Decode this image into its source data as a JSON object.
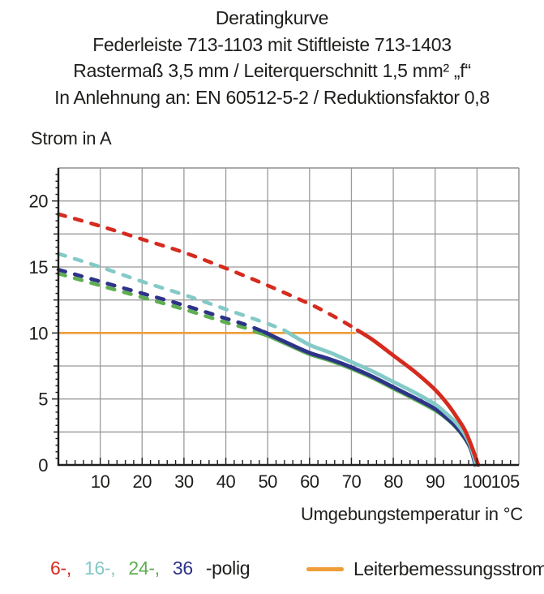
{
  "title_lines": [
    "Deratingkurve",
    "Federleiste 713-1103 mit Stiftleiste 713-1403",
    "Rastermaß 3,5 mm / Leiterquerschnitt 1,5 mm² „f“",
    "In Anlehnung an: EN 60512-5-2 / Reduktionsfaktor 0,8"
  ],
  "legend": {
    "entries": [
      {
        "text": "6-,",
        "color": "#d52b1e"
      },
      {
        "text": "16-,",
        "color": "#84cac7"
      },
      {
        "text": "24-,",
        "color": "#5fae52"
      },
      {
        "text": "36",
        "color": "#2d3388"
      }
    ],
    "suffix": "-polig",
    "rated": {
      "label": "Leiterbemessungsstrom",
      "color": "#ef9d38"
    }
  },
  "colors": {
    "grid": "#9b9b9b",
    "frame": "#8f8f8f",
    "axis": "#1d1d1b",
    "text": "#1d1d1b"
  },
  "chart_data": {
    "type": "line",
    "title": "Deratingkurve",
    "xlabel": "Umgebungstemperatur in °C",
    "ylabel": "Strom in A",
    "xlim": [
      0,
      110
    ],
    "ylim": [
      0,
      22.5
    ],
    "x_tick_labels": [
      10,
      20,
      30,
      40,
      50,
      60,
      70,
      80,
      90,
      100,
      105
    ],
    "x_grid_step": 10,
    "x_minor_tick_step": 2,
    "y_tick_labels": [
      0,
      5,
      10,
      15,
      20
    ],
    "y_grid_step": 2.5,
    "y_minor_tick_step": 0.5,
    "grid": true,
    "legend_position": "bottom",
    "rated_line": {
      "label": "Leiterbemessungsstrom",
      "y": 10,
      "x_start": 0,
      "x_end": 71,
      "color": "#ef9d38"
    },
    "series": [
      {
        "name": "24-polig",
        "color": "#5fae52",
        "style": "dashed-above-rated",
        "dashed": [
          [
            0,
            14.5
          ],
          [
            10,
            13.6
          ],
          [
            20,
            12.7
          ],
          [
            30,
            11.8
          ],
          [
            40,
            10.8
          ],
          [
            45,
            10.35
          ],
          [
            47.5,
            10.05
          ]
        ],
        "solid": [
          [
            47.5,
            10.05
          ],
          [
            50,
            9.8
          ],
          [
            55,
            9.1
          ],
          [
            60,
            8.4
          ],
          [
            65,
            7.9
          ],
          [
            70,
            7.3
          ],
          [
            75,
            6.6
          ],
          [
            80,
            5.8
          ],
          [
            85,
            5.0
          ],
          [
            90,
            4.15
          ],
          [
            93,
            3.45
          ],
          [
            95,
            2.85
          ],
          [
            97,
            2.05
          ],
          [
            98.5,
            1.2
          ],
          [
            99.6,
            0
          ]
        ]
      },
      {
        "name": "36-polig",
        "color": "#2d3388",
        "style": "dashed-above-rated",
        "dashed": [
          [
            0,
            14.8
          ],
          [
            10,
            13.9
          ],
          [
            20,
            13.0
          ],
          [
            30,
            12.1
          ],
          [
            40,
            11.1
          ],
          [
            45,
            10.6
          ],
          [
            49,
            10.1
          ]
        ],
        "solid": [
          [
            49,
            10.1
          ],
          [
            50,
            9.95
          ],
          [
            55,
            9.2
          ],
          [
            60,
            8.5
          ],
          [
            65,
            8.0
          ],
          [
            70,
            7.4
          ],
          [
            75,
            6.7
          ],
          [
            80,
            5.9
          ],
          [
            85,
            5.1
          ],
          [
            90,
            4.25
          ],
          [
            93,
            3.5
          ],
          [
            95,
            2.9
          ],
          [
            97,
            2.1
          ],
          [
            98.5,
            1.25
          ],
          [
            99.6,
            0
          ]
        ]
      },
      {
        "name": "16-polig",
        "color": "#84cac7",
        "style": "dashed-above-rated",
        "dashed": [
          [
            0,
            16.0
          ],
          [
            10,
            15.0
          ],
          [
            20,
            13.9
          ],
          [
            30,
            12.9
          ],
          [
            40,
            11.8
          ],
          [
            50,
            10.7
          ],
          [
            54,
            10.2
          ]
        ],
        "solid": [
          [
            54,
            10.2
          ],
          [
            55,
            10.0
          ],
          [
            60,
            9.1
          ],
          [
            65,
            8.5
          ],
          [
            70,
            7.8
          ],
          [
            75,
            7.1
          ],
          [
            80,
            6.3
          ],
          [
            85,
            5.5
          ],
          [
            90,
            4.6
          ],
          [
            93,
            3.8
          ],
          [
            95,
            3.2
          ],
          [
            97,
            2.35
          ],
          [
            98.5,
            1.4
          ],
          [
            99.8,
            0
          ]
        ]
      },
      {
        "name": "6-polig",
        "color": "#d52b1e",
        "style": "dashed-above-rated",
        "dashed": [
          [
            0,
            19.0
          ],
          [
            10,
            18.1
          ],
          [
            20,
            17.1
          ],
          [
            30,
            16.1
          ],
          [
            40,
            14.9
          ],
          [
            50,
            13.6
          ],
          [
            60,
            12.2
          ],
          [
            65,
            11.4
          ],
          [
            70,
            10.5
          ],
          [
            71.5,
            10.2
          ]
        ],
        "solid": [
          [
            71.5,
            10.2
          ],
          [
            75,
            9.5
          ],
          [
            80,
            8.3
          ],
          [
            85,
            7.1
          ],
          [
            90,
            5.7
          ],
          [
            93,
            4.6
          ],
          [
            95,
            3.7
          ],
          [
            97,
            2.7
          ],
          [
            98.5,
            1.6
          ],
          [
            100.3,
            0
          ]
        ]
      }
    ]
  }
}
